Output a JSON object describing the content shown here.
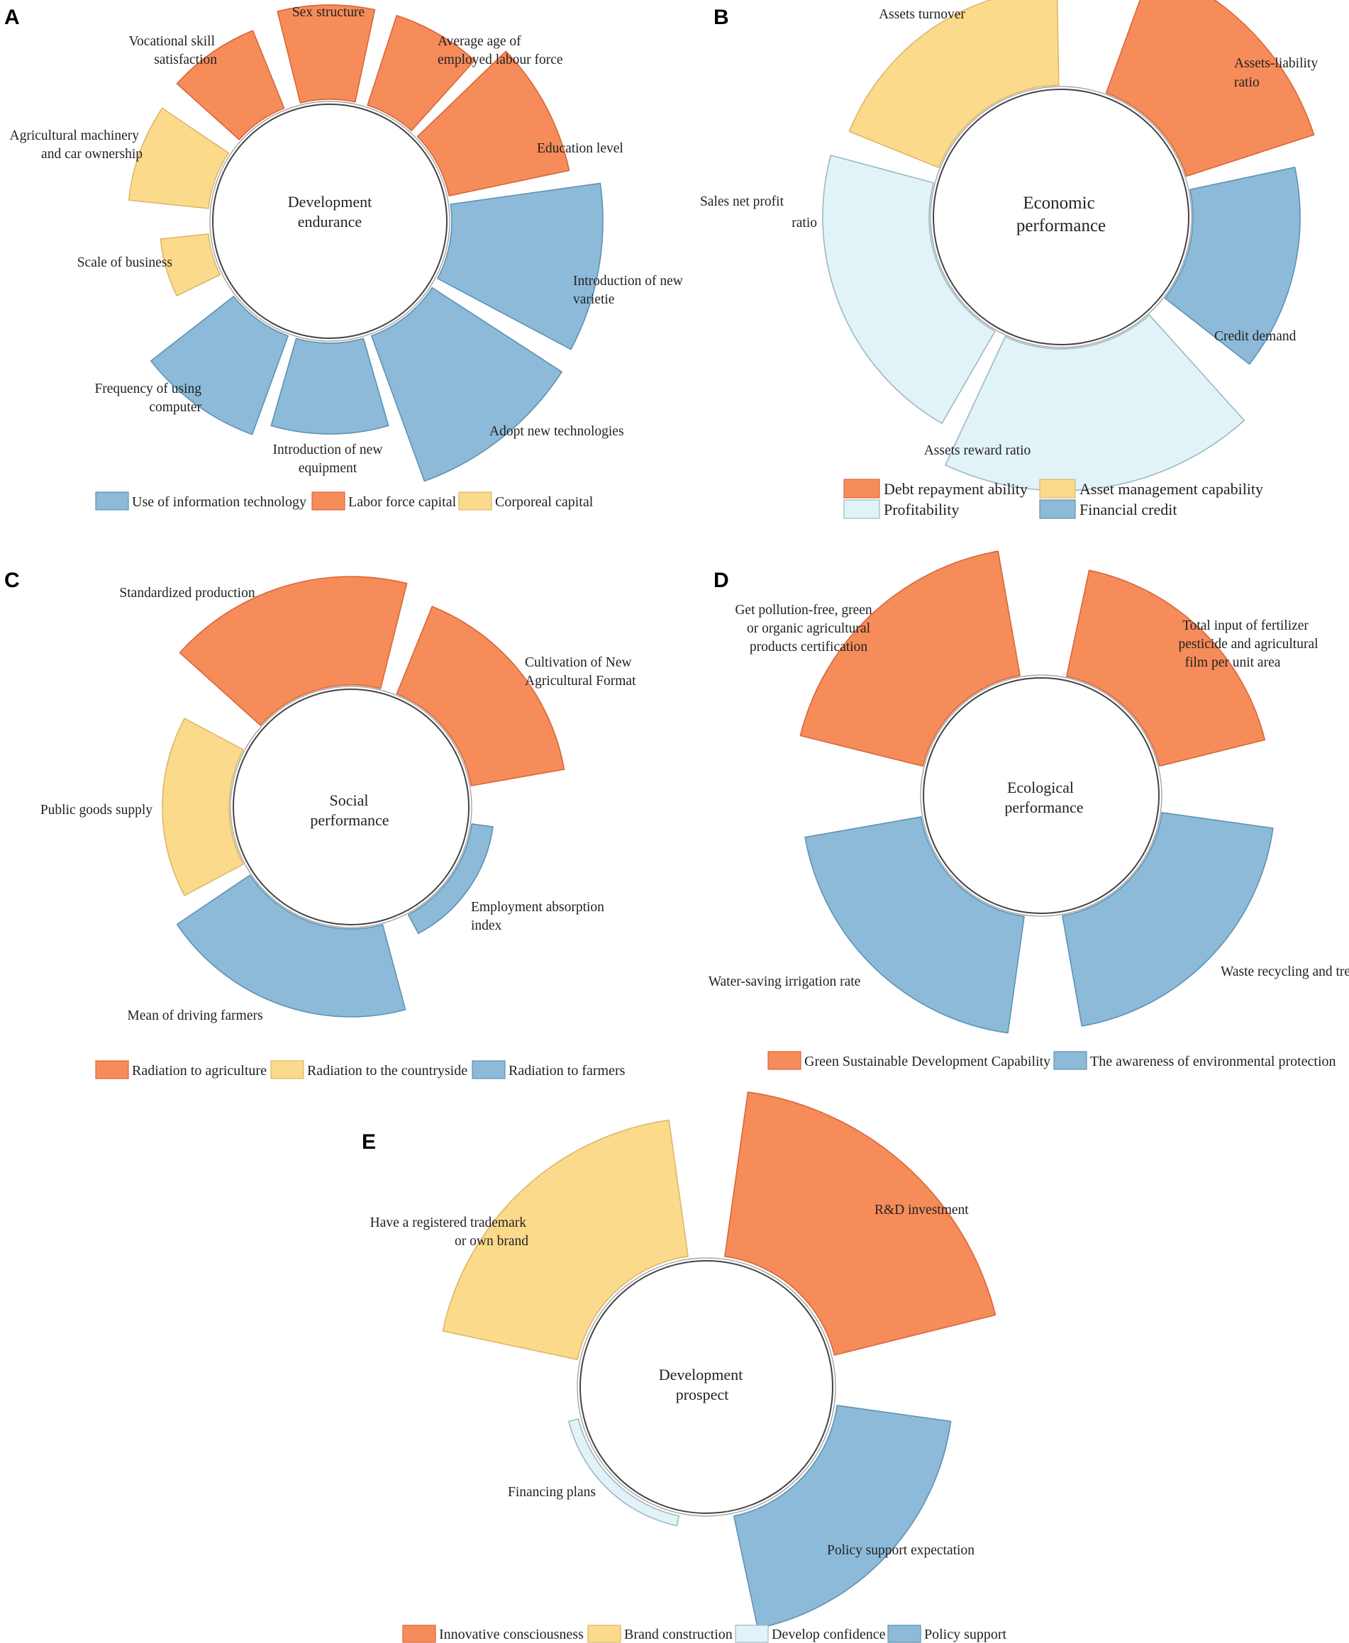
{
  "colors": {
    "orange": "#F58C5A",
    "yellow": "#FBDA8C",
    "lightblue": "#E2F3F8",
    "blue": "#8DBAD8",
    "stroke_orange": "#D9663A",
    "stroke_yellow": "#DDB768",
    "stroke_lightblue": "#9CB8C4",
    "stroke_blue": "#5E92B5"
  },
  "chart_data": [
    {
      "type": "radial_bar",
      "panel": "A",
      "center_label": [
        "Development",
        "endurance"
      ],
      "series": [
        {
          "name": "Sex structure",
          "group": "Labor force capital",
          "value": 0.68
        },
        {
          "name": "Average age of employed labour force",
          "group": "Labor force capital",
          "value": 0.69
        },
        {
          "name": "Education level",
          "group": "Labor force capital",
          "value": 0.8
        },
        {
          "name": "Introduction of new varietie",
          "group": "Use of information technology",
          "value": 1.0
        },
        {
          "name": "Adopt new technologies",
          "group": "Use of information technology",
          "value": 1.0
        },
        {
          "name": "Introduction of new equipment",
          "group": "Use of information technology",
          "value": 0.72
        },
        {
          "name": "Frequency of using computer",
          "group": "Use of information technology",
          "value": 0.78
        },
        {
          "name": "Scale of business",
          "group": "Corporeal capital",
          "value": 0.42
        },
        {
          "name": "Agricultural machinery and car ownership",
          "group": "Corporeal capital",
          "value": 0.62
        },
        {
          "name": "Vocational skill satisfaction",
          "group": "Labor force capital",
          "value": 0.65
        }
      ],
      "legend": [
        "Use of information technology",
        "Labor force capital",
        "Corporeal capital"
      ]
    },
    {
      "type": "radial_bar",
      "panel": "B",
      "center_label": [
        "Economic",
        "performance"
      ],
      "series": [
        {
          "name": "Assets-liability ratio",
          "group": "Debt repayment ability",
          "value": 0.78
        },
        {
          "name": "Credit demand",
          "group": "Financial credit",
          "value": 0.55
        },
        {
          "name": "Assets reward ratio",
          "group": "Profitability",
          "value": 0.95
        },
        {
          "name": "Sales net profit ratio",
          "group": "Profitability",
          "value": 0.82
        },
        {
          "name": "Assets turnover",
          "group": "Asset management capability",
          "value": 0.72
        }
      ],
      "legend": [
        "Debt repayment ability",
        "Asset management capability",
        "Profitability",
        "Financial credit"
      ]
    },
    {
      "type": "radial_bar",
      "panel": "C",
      "center_label": [
        "Social",
        "performance"
      ],
      "series": [
        {
          "name": "Cultivation of New Agricultural Format",
          "group": "Radiation to agriculture",
          "value": 0.9
        },
        {
          "name": "Employment absorption index",
          "group": "Radiation to farmers",
          "value": 0.3
        },
        {
          "name": "Mean of driving farmers",
          "group": "Radiation to farmers",
          "value": 0.85
        },
        {
          "name": "Public goods supply",
          "group": "Radiation to the countryside",
          "value": 0.65
        },
        {
          "name": "Standardized production",
          "group": "Radiation to agriculture",
          "value": 1.0
        }
      ],
      "legend": [
        "Radiation to agriculture",
        "Radiation to the countryside",
        "Radiation to farmers"
      ]
    },
    {
      "type": "radial_bar",
      "panel": "D",
      "center_label": [
        "Ecological",
        "performance"
      ],
      "series": [
        {
          "name": "Total input of fertilizer pesticide and agricultural film per unit area",
          "group": "Green Sustainable Development Capability",
          "value": 0.75
        },
        {
          "name": "Waste recycling and treatmen",
          "group": "The awareness of environmental protection",
          "value": 0.85
        },
        {
          "name": "Water-saving irrigation rate",
          "group": "The awareness of environmental protection",
          "value": 1.0
        },
        {
          "name": "Get pollution-free, green or organic agricultural products certification",
          "group": "Green Sustainable Development Capability",
          "value": 0.95
        }
      ],
      "legend": [
        "Green Sustainable Development Capability",
        "The awareness of environmental protection"
      ]
    },
    {
      "type": "radial_bar",
      "panel": "E",
      "center_label": [
        "Development",
        "prospect"
      ],
      "series": [
        {
          "name": "R&D investment",
          "group": "Innovative consciousness",
          "value": 1.0
        },
        {
          "name": "Policy support expectation",
          "group": "Policy support",
          "value": 0.85
        },
        {
          "name": "Financing plans",
          "group": "Develop confidence",
          "value": 0.08
        },
        {
          "name": "Have a registered trademark or own brand",
          "group": "Brand construction",
          "value": 0.9
        }
      ],
      "legend": [
        "Innovative consciousness",
        "Brand construction",
        "Develop confidence",
        "Policy support"
      ]
    }
  ],
  "panels": {
    "A": {
      "letter": "A",
      "center": [
        "Development",
        "endurance"
      ],
      "labels": {
        "sex": "Sex structure",
        "avg_age": [
          "Average age of",
          "employed labour force"
        ],
        "education": "Education level",
        "varietie": [
          "Introduction of new",
          "varietie"
        ],
        "adopt": "Adopt new technologies",
        "equipment": [
          "Introduction of new",
          "equipment"
        ],
        "computer": [
          "Frequency of using",
          "computer"
        ],
        "scale": "Scale of business",
        "machinery": [
          "Agricultural machinery",
          "and car ownership"
        ],
        "vocational": [
          "Vocational skill",
          "satisfaction"
        ]
      },
      "legend": [
        "Use of information technology",
        "Labor force capital",
        "Corporeal capital"
      ]
    },
    "B": {
      "letter": "B",
      "center": [
        "Economic",
        "performance"
      ],
      "labels": {
        "liability": [
          "Assets-liability",
          "ratio"
        ],
        "credit": "Credit demand",
        "reward": "Assets reward ratio",
        "sales": [
          "Sales net profit",
          "ratio"
        ],
        "turnover": "Assets turnover"
      },
      "legend": [
        "Debt repayment ability",
        "Asset management capability",
        "Profitability",
        "Financial credit"
      ]
    },
    "C": {
      "letter": "C",
      "center": [
        "Social",
        "performance"
      ],
      "labels": {
        "cultivation": [
          "Cultivation of New",
          "Agricultural Format"
        ],
        "employment": [
          "Employment absorption",
          "index"
        ],
        "driving": "Mean of driving farmers",
        "public": "Public goods supply",
        "standardized": "Standardized production"
      },
      "legend": [
        "Radiation to agriculture",
        "Radiation to the countryside",
        "Radiation to farmers"
      ]
    },
    "D": {
      "letter": "D",
      "center": [
        "Ecological",
        "performance"
      ],
      "labels": {
        "fertilizer": [
          "Total input of fertilizer",
          "pesticide and agricultural",
          "film per unit area"
        ],
        "waste": "Waste recycling and treatmen",
        "water": "Water-saving irrigation rate",
        "pollution": [
          "Get pollution-free, green",
          "or organic agricultural",
          "products certification"
        ]
      },
      "legend": [
        "Green Sustainable Development Capability",
        "The awareness of environmental protection"
      ]
    },
    "E": {
      "letter": "E",
      "center": [
        "Development",
        "prospect"
      ],
      "labels": {
        "rd": "R&D investment",
        "policy": "Policy support expectation",
        "financing": "Financing plans",
        "trademark": [
          "Have a registered trademark",
          "or own brand"
        ]
      },
      "legend": [
        "Innovative consciousness",
        "Brand construction",
        "Develop confidence",
        "Policy support"
      ]
    }
  }
}
